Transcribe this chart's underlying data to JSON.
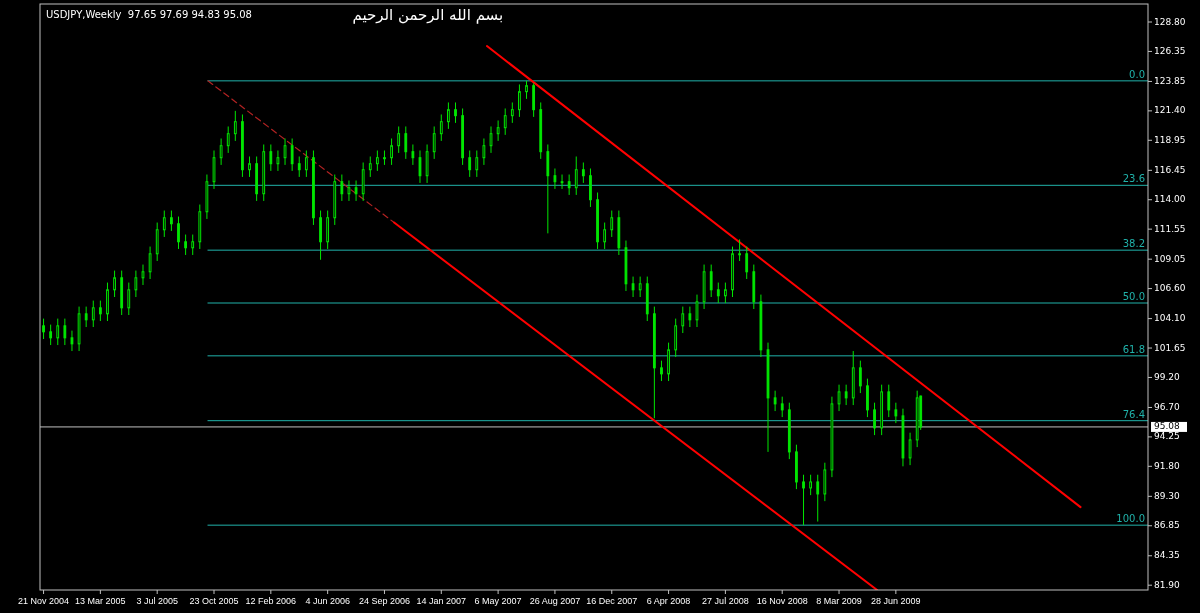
{
  "chart_data": {
    "type": "candlestick",
    "title": "USDJPY,Weekly  97.65 97.69 94.83 95.08",
    "subtitle": "بسم الله الرحمن الرحيم",
    "color": "#00e600",
    "x": [
      "2004-11-21",
      "2004-12-05",
      "2004-12-19",
      "2005-01-02",
      "2005-01-16",
      "2005-01-30",
      "2005-02-13",
      "2005-02-27",
      "2005-03-13",
      "2005-03-27",
      "2005-04-10",
      "2005-04-24",
      "2005-05-08",
      "2005-05-22",
      "2005-06-05",
      "2005-06-19",
      "2005-07-03",
      "2005-07-17",
      "2005-07-31",
      "2005-08-14",
      "2005-08-28",
      "2005-09-11",
      "2005-09-25",
      "2005-10-09",
      "2005-10-23",
      "2005-11-06",
      "2005-11-20",
      "2005-12-04",
      "2005-12-18",
      "2006-01-01",
      "2006-01-15",
      "2006-01-29",
      "2006-02-12",
      "2006-02-26",
      "2006-03-12",
      "2006-03-26",
      "2006-04-09",
      "2006-04-23",
      "2006-05-07",
      "2006-05-21",
      "2006-06-04",
      "2006-06-18",
      "2006-07-02",
      "2006-07-16",
      "2006-07-30",
      "2006-08-13",
      "2006-08-27",
      "2006-09-10",
      "2006-09-24",
      "2006-10-08",
      "2006-10-22",
      "2006-11-05",
      "2006-11-19",
      "2006-12-03",
      "2006-12-17",
      "2006-12-31",
      "2007-01-14",
      "2007-01-28",
      "2007-02-11",
      "2007-02-25",
      "2007-03-11",
      "2007-03-25",
      "2007-04-08",
      "2007-04-22",
      "2007-05-06",
      "2007-05-20",
      "2007-06-03",
      "2007-06-17",
      "2007-07-01",
      "2007-07-15",
      "2007-07-29",
      "2007-08-12",
      "2007-08-26",
      "2007-09-09",
      "2007-09-23",
      "2007-10-07",
      "2007-10-21",
      "2007-11-04",
      "2007-11-18",
      "2007-12-02",
      "2007-12-16",
      "2007-12-30",
      "2008-01-13",
      "2008-01-27",
      "2008-02-10",
      "2008-02-24",
      "2008-03-09",
      "2008-03-23",
      "2008-04-06",
      "2008-04-20",
      "2008-05-04",
      "2008-05-18",
      "2008-06-01",
      "2008-06-15",
      "2008-06-29",
      "2008-07-13",
      "2008-07-27",
      "2008-08-10",
      "2008-08-24",
      "2008-09-07",
      "2008-09-21",
      "2008-10-05",
      "2008-10-19",
      "2008-11-02",
      "2008-11-16",
      "2008-11-30",
      "2008-12-14",
      "2008-12-28",
      "2009-01-11",
      "2009-01-25",
      "2009-02-08",
      "2009-02-22",
      "2009-03-08",
      "2009-03-22",
      "2009-04-05",
      "2009-04-19",
      "2009-05-03",
      "2009-05-17",
      "2009-05-31",
      "2009-06-14",
      "2009-06-28",
      "2009-07-12",
      "2009-07-26",
      "2009-08-09",
      "2009-08-16"
    ],
    "ohlc": [
      [
        103.5,
        104.1,
        102.4,
        103.0
      ],
      [
        103.0,
        103.6,
        101.9,
        102.5
      ],
      [
        102.5,
        104.1,
        101.9,
        103.5
      ],
      [
        103.5,
        104.1,
        101.9,
        102.5
      ],
      [
        102.5,
        103.1,
        101.4,
        102.0
      ],
      [
        102.0,
        105.1,
        101.4,
        104.5
      ],
      [
        104.5,
        105.1,
        103.4,
        104.0
      ],
      [
        104.0,
        105.6,
        103.4,
        105.0
      ],
      [
        105.0,
        105.6,
        103.9,
        104.5
      ],
      [
        104.5,
        107.1,
        103.9,
        106.5
      ],
      [
        106.5,
        108.1,
        105.9,
        107.5
      ],
      [
        107.5,
        108.1,
        104.4,
        105.0
      ],
      [
        105.0,
        107.1,
        104.4,
        106.5
      ],
      [
        106.5,
        108.1,
        105.9,
        107.5
      ],
      [
        107.5,
        108.6,
        106.9,
        108.0
      ],
      [
        108.0,
        110.1,
        107.4,
        109.5
      ],
      [
        109.5,
        112.1,
        108.9,
        111.5
      ],
      [
        111.5,
        113.1,
        110.9,
        112.5
      ],
      [
        112.5,
        113.1,
        111.4,
        112.0
      ],
      [
        112.0,
        112.6,
        109.9,
        110.5
      ],
      [
        110.5,
        111.1,
        109.4,
        110.0
      ],
      [
        110.0,
        111.1,
        109.4,
        110.5
      ],
      [
        110.5,
        113.6,
        109.9,
        113.0
      ],
      [
        113.0,
        116.1,
        112.4,
        115.5
      ],
      [
        115.5,
        118.1,
        114.9,
        117.5
      ],
      [
        117.5,
        119.1,
        116.9,
        118.5
      ],
      [
        118.5,
        120.1,
        117.9,
        119.5
      ],
      [
        119.5,
        121.4,
        118.9,
        120.5
      ],
      [
        120.5,
        121.1,
        115.9,
        116.5
      ],
      [
        116.5,
        117.6,
        115.9,
        117.0
      ],
      [
        117.0,
        117.6,
        113.9,
        114.5
      ],
      [
        114.5,
        118.6,
        113.9,
        118.0
      ],
      [
        118.0,
        118.6,
        116.4,
        117.0
      ],
      [
        117.0,
        118.1,
        116.4,
        117.5
      ],
      [
        117.5,
        119.1,
        116.9,
        118.5
      ],
      [
        118.5,
        119.1,
        116.4,
        117.0
      ],
      [
        117.0,
        117.6,
        115.9,
        116.5
      ],
      [
        116.5,
        118.1,
        115.9,
        117.5
      ],
      [
        117.5,
        118.1,
        111.9,
        112.5
      ],
      [
        112.5,
        113.1,
        109.0,
        110.5
      ],
      [
        110.5,
        113.1,
        109.9,
        112.5
      ],
      [
        112.5,
        116.1,
        111.9,
        115.5
      ],
      [
        115.5,
        116.1,
        113.9,
        114.5
      ],
      [
        114.5,
        115.6,
        113.9,
        115.0
      ],
      [
        115.0,
        115.6,
        113.9,
        114.5
      ],
      [
        114.5,
        117.1,
        113.9,
        116.5
      ],
      [
        116.5,
        117.6,
        115.9,
        117.0
      ],
      [
        117.0,
        118.1,
        116.4,
        117.5
      ],
      [
        117.5,
        118.1,
        116.9,
        117.5
      ],
      [
        117.5,
        119.1,
        116.9,
        118.5
      ],
      [
        118.5,
        120.1,
        117.9,
        119.5
      ],
      [
        119.5,
        120.1,
        117.4,
        118.0
      ],
      [
        118.0,
        118.6,
        116.9,
        117.5
      ],
      [
        117.5,
        118.1,
        115.4,
        116.0
      ],
      [
        116.0,
        118.6,
        115.4,
        118.0
      ],
      [
        118.0,
        120.1,
        117.4,
        119.5
      ],
      [
        119.5,
        121.1,
        118.9,
        120.5
      ],
      [
        120.5,
        122.1,
        119.9,
        121.5
      ],
      [
        121.5,
        122.1,
        120.4,
        121.0
      ],
      [
        121.0,
        121.6,
        116.9,
        117.5
      ],
      [
        117.5,
        118.1,
        115.9,
        116.5
      ],
      [
        116.5,
        118.1,
        115.9,
        117.5
      ],
      [
        117.5,
        119.1,
        116.9,
        118.5
      ],
      [
        118.5,
        120.1,
        117.9,
        119.5
      ],
      [
        119.5,
        120.6,
        118.9,
        120.0
      ],
      [
        120.0,
        121.6,
        119.4,
        121.0
      ],
      [
        121.0,
        122.1,
        120.4,
        121.5
      ],
      [
        121.5,
        123.6,
        120.9,
        123.0
      ],
      [
        123.0,
        123.9,
        122.4,
        123.5
      ],
      [
        123.5,
        123.7,
        120.9,
        121.5
      ],
      [
        121.5,
        122.1,
        117.4,
        118.0
      ],
      [
        118.0,
        118.6,
        111.2,
        116.0
      ],
      [
        116.0,
        116.6,
        114.9,
        115.5
      ],
      [
        115.5,
        116.1,
        114.9,
        115.5
      ],
      [
        115.5,
        116.1,
        114.4,
        115.0
      ],
      [
        115.0,
        117.6,
        114.4,
        116.5
      ],
      [
        116.5,
        117.1,
        115.4,
        116.0
      ],
      [
        116.0,
        116.6,
        113.4,
        114.0
      ],
      [
        114.0,
        114.6,
        109.9,
        110.5
      ],
      [
        110.5,
        112.1,
        109.9,
        111.5
      ],
      [
        111.5,
        113.1,
        110.9,
        112.5
      ],
      [
        112.5,
        113.1,
        109.4,
        110.0
      ],
      [
        110.0,
        110.6,
        106.4,
        107.0
      ],
      [
        107.0,
        107.6,
        105.9,
        106.5
      ],
      [
        106.5,
        107.6,
        105.9,
        107.0
      ],
      [
        107.0,
        107.6,
        103.9,
        104.5
      ],
      [
        104.5,
        105.1,
        95.8,
        100.0
      ],
      [
        100.0,
        100.6,
        98.9,
        99.5
      ],
      [
        99.5,
        102.1,
        98.9,
        101.5
      ],
      [
        101.5,
        104.1,
        100.9,
        103.5
      ],
      [
        103.5,
        105.1,
        102.9,
        104.5
      ],
      [
        104.5,
        105.1,
        103.4,
        104.0
      ],
      [
        104.0,
        106.1,
        103.4,
        105.5
      ],
      [
        105.5,
        108.6,
        104.9,
        108.0
      ],
      [
        108.0,
        108.6,
        105.9,
        106.5
      ],
      [
        106.5,
        107.1,
        105.4,
        106.0
      ],
      [
        106.0,
        107.1,
        105.4,
        106.5
      ],
      [
        106.5,
        110.1,
        105.9,
        109.5
      ],
      [
        109.5,
        110.7,
        108.9,
        109.5
      ],
      [
        109.5,
        110.1,
        107.4,
        108.0
      ],
      [
        108.0,
        108.6,
        104.9,
        105.5
      ],
      [
        105.5,
        106.1,
        100.9,
        101.5
      ],
      [
        101.5,
        102.1,
        93.0,
        97.5
      ],
      [
        97.5,
        98.1,
        96.4,
        97.0
      ],
      [
        97.0,
        97.6,
        95.9,
        96.5
      ],
      [
        96.5,
        97.1,
        92.4,
        93.0
      ],
      [
        93.0,
        93.6,
        89.9,
        90.5
      ],
      [
        90.5,
        91.1,
        86.9,
        90.0
      ],
      [
        90.0,
        91.1,
        89.4,
        90.5
      ],
      [
        90.5,
        91.1,
        87.2,
        89.5
      ],
      [
        89.5,
        92.1,
        88.9,
        91.5
      ],
      [
        91.5,
        97.6,
        90.9,
        97.0
      ],
      [
        97.0,
        98.6,
        96.4,
        98.0
      ],
      [
        98.0,
        98.6,
        96.9,
        97.5
      ],
      [
        97.5,
        101.4,
        96.9,
        100.0
      ],
      [
        100.0,
        100.6,
        97.9,
        98.5
      ],
      [
        98.5,
        99.1,
        95.9,
        96.5
      ],
      [
        96.5,
        97.1,
        94.4,
        95.0
      ],
      [
        95.0,
        98.6,
        94.4,
        98.0
      ],
      [
        98.0,
        98.6,
        95.9,
        96.5
      ],
      [
        96.5,
        97.1,
        95.4,
        96.0
      ],
      [
        96.0,
        96.6,
        91.8,
        92.5
      ],
      [
        92.5,
        94.6,
        91.9,
        94.0
      ],
      [
        94.0,
        98.1,
        93.4,
        97.5
      ],
      [
        97.65,
        97.69,
        94.83,
        95.08
      ]
    ],
    "series": [
      {
        "type": "line",
        "name": "0.0",
        "color": "#20b2aa",
        "x": [
          "2005-10-11",
          "2010-11-07"
        ],
        "values": [
          123.9,
          123.9
        ]
      },
      {
        "type": "line",
        "name": "23.6",
        "color": "#20b2aa",
        "x": [
          "2005-10-11",
          "2010-11-07"
        ],
        "values": [
          115.2,
          115.2
        ]
      },
      {
        "type": "line",
        "name": "38.2",
        "color": "#20b2aa",
        "x": [
          "2005-10-11",
          "2010-11-07"
        ],
        "values": [
          109.8,
          109.8
        ]
      },
      {
        "type": "line",
        "name": "50.0",
        "color": "#20b2aa",
        "x": [
          "2005-10-11",
          "2010-11-07"
        ],
        "values": [
          105.4,
          105.4
        ]
      },
      {
        "type": "line",
        "name": "61.8",
        "color": "#20b2aa",
        "x": [
          "2005-10-11",
          "2010-11-07"
        ],
        "values": [
          101.0,
          101.0
        ]
      },
      {
        "type": "line",
        "name": "76.4",
        "color": "#20b2aa",
        "x": [
          "2005-10-11",
          "2010-11-07"
        ],
        "values": [
          95.6,
          95.6
        ]
      },
      {
        "type": "line",
        "name": "100.0",
        "color": "#20b2aa",
        "x": [
          "2005-10-11",
          "2010-11-07"
        ],
        "values": [
          86.9,
          86.9
        ]
      },
      {
        "type": "line",
        "color": "#b22222",
        "line_style": "dashed",
        "x": [
          "2005-10-11",
          "2006-10-13"
        ],
        "values": [
          123.9,
          112.1
        ]
      },
      {
        "type": "line",
        "color": "#ff0000",
        "line_style": "solid",
        "x": [
          "2006-10-13",
          "2009-05-22"
        ],
        "values": [
          112.1,
          81.5
        ]
      },
      {
        "type": "line",
        "color": "#ff0000",
        "line_style": "solid",
        "x": [
          "2007-04-14",
          "2010-06-27"
        ],
        "values": [
          126.8,
          88.4
        ]
      }
    ],
    "ref_lines": [
      {
        "axis": "y",
        "value": 95.08,
        "label": "95.08",
        "color": "#c0c0c0"
      }
    ],
    "xlim": [
      "2004-11-14",
      "2010-11-07"
    ],
    "xticks": [
      {
        "value": "2004-11-21",
        "label": "21 Nov 2004"
      },
      {
        "value": "2005-03-13",
        "label": "13 Mar 2005"
      },
      {
        "value": "2005-07-03",
        "label": "3 Jul 2005"
      },
      {
        "value": "2005-10-23",
        "label": "23 Oct 2005"
      },
      {
        "value": "2006-02-12",
        "label": "12 Feb 2006"
      },
      {
        "value": "2006-06-04",
        "label": "4 Jun 2006"
      },
      {
        "value": "2006-09-24",
        "label": "24 Sep 2006"
      },
      {
        "value": "2007-01-14",
        "label": "14 Jan 2007"
      },
      {
        "value": "2007-05-06",
        "label": "6 May 2007"
      },
      {
        "value": "2007-08-26",
        "label": "26 Aug 2007"
      },
      {
        "value": "2007-12-16",
        "label": "16 Dec 2007"
      },
      {
        "value": "2008-04-06",
        "label": "6 Apr 2008"
      },
      {
        "value": "2008-07-27",
        "label": "27 Jul 2008"
      },
      {
        "value": "2008-11-16",
        "label": "16 Nov 2008"
      },
      {
        "value": "2009-03-08",
        "label": "8 Mar 2009"
      },
      {
        "value": "2009-06-28",
        "label": "28 Jun 2009"
      }
    ],
    "ylim": [
      81.5,
      130.3
    ],
    "yticks": [
      {
        "value": 128.8,
        "label": "128.80"
      },
      {
        "value": 126.35,
        "label": "126.35"
      },
      {
        "value": 123.85,
        "label": "123.85"
      },
      {
        "value": 121.4,
        "label": "121.40"
      },
      {
        "value": 118.95,
        "label": "118.95"
      },
      {
        "value": 116.45,
        "label": "116.45"
      },
      {
        "value": 114,
        "label": "114.00"
      },
      {
        "value": 111.55,
        "label": "111.55"
      },
      {
        "value": 109.05,
        "label": "109.05"
      },
      {
        "value": 106.6,
        "label": "106.60"
      },
      {
        "value": 104.1,
        "label": "104.10"
      },
      {
        "value": 101.65,
        "label": "101.65"
      },
      {
        "value": 99.2,
        "label": "99.20"
      },
      {
        "value": 96.7,
        "label": "96.70"
      },
      {
        "value": 94.25,
        "label": "94.25"
      },
      {
        "value": 91.8,
        "label": "91.80"
      },
      {
        "value": 89.3,
        "label": "89.30"
      },
      {
        "value": 86.85,
        "label": "86.85"
      },
      {
        "value": 84.35,
        "label": "84.35"
      },
      {
        "value": 81.9,
        "label": "81.90"
      }
    ]
  }
}
